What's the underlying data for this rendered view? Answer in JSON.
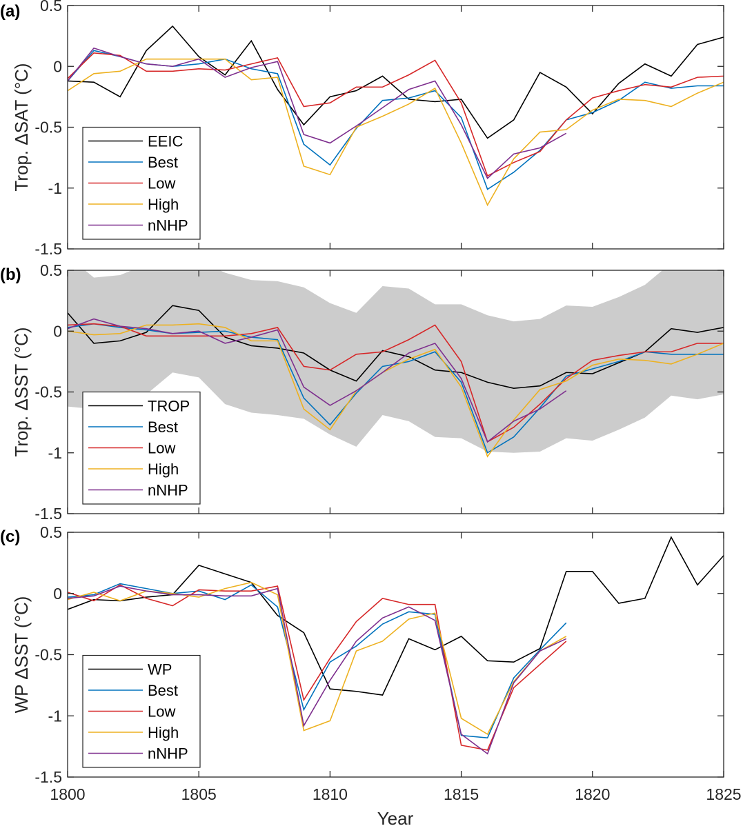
{
  "chart_data": [
    {
      "type": "line",
      "panel_label": "(a)",
      "ylabel": "Trop. ΔSAT (°C)",
      "xlabel": "",
      "xlim": [
        1800,
        1825
      ],
      "ylim": [
        -1.5,
        0.5
      ],
      "xticks": [
        1800,
        1805,
        1810,
        1815,
        1820,
        1825
      ],
      "yticks": [
        -1.5,
        -1,
        -0.5,
        0,
        0.5
      ],
      "ytick_labels": [
        "-1.5",
        "-1",
        "-0.5",
        "0",
        "0.5"
      ],
      "show_xtick_labels": false,
      "grid": false,
      "legend_position": "bottom-left",
      "x_start": 1800,
      "series": [
        {
          "name": "EEIC",
          "color": "#000000",
          "values": [
            -0.12,
            -0.13,
            -0.25,
            0.13,
            0.33,
            0.08,
            -0.07,
            0.21,
            -0.19,
            -0.48,
            -0.25,
            -0.2,
            -0.08,
            -0.27,
            -0.29,
            -0.27,
            -0.59,
            -0.44,
            -0.05,
            -0.17,
            -0.39,
            -0.14,
            0.02,
            -0.08,
            0.18,
            0.24
          ]
        },
        {
          "name": "Best",
          "color": "#0072BD",
          "values": [
            -0.12,
            0.13,
            0.08,
            0.02,
            0.0,
            0.02,
            0.06,
            -0.02,
            -0.06,
            -0.64,
            -0.81,
            -0.51,
            -0.28,
            -0.26,
            -0.2,
            -0.42,
            -1.01,
            -0.87,
            -0.69,
            -0.44,
            -0.38,
            -0.28,
            -0.13,
            -0.18,
            -0.16,
            -0.16
          ]
        },
        {
          "name": "Low",
          "color": "#D95319",
          "stroke": "#D62728",
          "values": [
            -0.1,
            0.11,
            0.09,
            -0.04,
            -0.04,
            -0.02,
            -0.03,
            0.02,
            0.07,
            -0.33,
            -0.3,
            -0.17,
            -0.17,
            -0.07,
            0.05,
            -0.3,
            -0.9,
            -0.79,
            -0.7,
            -0.44,
            -0.26,
            -0.2,
            -0.15,
            -0.17,
            -0.09,
            -0.08
          ]
        },
        {
          "name": "High",
          "color": "#EDB120",
          "values": [
            -0.2,
            -0.06,
            -0.04,
            0.06,
            0.06,
            0.06,
            0.06,
            -0.11,
            -0.09,
            -0.82,
            -0.89,
            -0.5,
            -0.41,
            -0.31,
            -0.18,
            -0.63,
            -1.14,
            -0.76,
            -0.54,
            -0.52,
            -0.36,
            -0.27,
            -0.28,
            -0.33,
            -0.22,
            -0.13
          ]
        },
        {
          "name": "nNHP",
          "color": "#7E2F8E",
          "values": [
            -0.12,
            0.15,
            0.08,
            0.02,
            0.0,
            0.06,
            -0.09,
            -0.01,
            0.04,
            -0.56,
            -0.63,
            -0.49,
            -0.34,
            -0.19,
            -0.12,
            -0.48,
            -0.92,
            -0.72,
            -0.67,
            -0.55
          ]
        }
      ]
    },
    {
      "type": "line",
      "panel_label": "(b)",
      "ylabel": "Trop. ΔSST (°C)",
      "xlabel": "",
      "xlim": [
        1800,
        1825
      ],
      "ylim": [
        -1.5,
        0.5
      ],
      "xticks": [
        1800,
        1805,
        1810,
        1815,
        1820,
        1825
      ],
      "yticks": [
        -1.5,
        -1,
        -0.5,
        0,
        0.5
      ],
      "ytick_labels": [
        "-1.5",
        "-1",
        "-0.5",
        "0",
        "0.5"
      ],
      "show_xtick_labels": false,
      "grid": false,
      "legend_position": "bottom-left",
      "x_start": 1800,
      "band": {
        "color": "#CCCCCC",
        "upper": [
          0.62,
          0.44,
          0.46,
          0.55,
          0.6,
          0.58,
          0.48,
          0.42,
          0.41,
          0.36,
          0.23,
          0.15,
          0.37,
          0.35,
          0.22,
          0.22,
          0.13,
          0.08,
          0.1,
          0.21,
          0.2,
          0.28,
          0.38,
          0.56,
          0.6,
          0.62
        ],
        "lower": [
          -0.62,
          -0.64,
          -0.6,
          -0.52,
          -0.34,
          -0.38,
          -0.6,
          -0.67,
          -0.69,
          -0.72,
          -0.85,
          -0.95,
          -0.69,
          -0.74,
          -0.87,
          -0.88,
          -0.99,
          -1.0,
          -0.99,
          -0.88,
          -0.9,
          -0.81,
          -0.71,
          -0.53,
          -0.56,
          -0.52
        ]
      },
      "series": [
        {
          "name": "TROP",
          "color": "#000000",
          "values": [
            0.15,
            -0.1,
            -0.08,
            -0.01,
            0.21,
            0.17,
            -0.05,
            -0.12,
            -0.14,
            -0.18,
            -0.32,
            -0.41,
            -0.16,
            -0.21,
            -0.32,
            -0.34,
            -0.42,
            -0.47,
            -0.45,
            -0.34,
            -0.35,
            -0.26,
            -0.17,
            0.02,
            -0.01,
            0.03
          ]
        },
        {
          "name": "Best",
          "color": "#0072BD",
          "values": [
            0.03,
            0.06,
            0.03,
            0.01,
            -0.02,
            -0.01,
            0.0,
            -0.05,
            -0.07,
            -0.55,
            -0.77,
            -0.51,
            -0.29,
            -0.25,
            -0.17,
            -0.42,
            -1.0,
            -0.87,
            -0.63,
            -0.37,
            -0.31,
            -0.25,
            -0.17,
            -0.19,
            -0.19,
            -0.19
          ]
        },
        {
          "name": "Low",
          "color": "#D62728",
          "values": [
            0.05,
            0.06,
            0.04,
            -0.04,
            -0.04,
            -0.04,
            -0.04,
            -0.02,
            0.03,
            -0.29,
            -0.32,
            -0.19,
            -0.17,
            -0.07,
            0.05,
            -0.25,
            -0.91,
            -0.79,
            -0.6,
            -0.39,
            -0.24,
            -0.2,
            -0.17,
            -0.17,
            -0.1,
            -0.1
          ]
        },
        {
          "name": "High",
          "color": "#EDB120",
          "values": [
            0.0,
            -0.03,
            -0.02,
            0.05,
            0.05,
            0.06,
            0.03,
            -0.08,
            -0.08,
            -0.64,
            -0.81,
            -0.49,
            -0.34,
            -0.23,
            -0.15,
            -0.46,
            -1.03,
            -0.73,
            -0.48,
            -0.41,
            -0.28,
            -0.23,
            -0.24,
            -0.27,
            -0.19,
            -0.1
          ]
        },
        {
          "name": "nNHP",
          "color": "#7E2F8E",
          "values": [
            0.02,
            0.1,
            0.04,
            0.02,
            -0.02,
            0.0,
            -0.1,
            -0.05,
            0.01,
            -0.46,
            -0.61,
            -0.49,
            -0.34,
            -0.18,
            -0.1,
            -0.39,
            -0.91,
            -0.74,
            -0.64,
            -0.49
          ]
        }
      ]
    },
    {
      "type": "line",
      "panel_label": "(c)",
      "ylabel": "WP ΔSST (°C)",
      "xlabel": "Year",
      "xlim": [
        1800,
        1825
      ],
      "ylim": [
        -1.5,
        0.5
      ],
      "xticks": [
        1800,
        1805,
        1810,
        1815,
        1820,
        1825
      ],
      "xtick_labels": [
        "1800",
        "1805",
        "1810",
        "1815",
        "1820",
        "1825"
      ],
      "yticks": [
        -1.5,
        -1,
        -0.5,
        0,
        0.5
      ],
      "ytick_labels": [
        "-1.5",
        "-1",
        "-0.5",
        "0",
        "0.5"
      ],
      "show_xtick_labels": true,
      "grid": false,
      "legend_position": "bottom-left",
      "x_start": 1800,
      "series": [
        {
          "name": "WP",
          "color": "#000000",
          "values": [
            -0.13,
            -0.05,
            -0.06,
            -0.03,
            -0.01,
            0.23,
            0.16,
            0.09,
            -0.18,
            -0.32,
            -0.78,
            -0.8,
            -0.83,
            -0.37,
            -0.46,
            -0.35,
            -0.55,
            -0.56,
            -0.45,
            0.18,
            0.18,
            -0.08,
            -0.04,
            0.46,
            0.07,
            0.31
          ]
        },
        {
          "name": "Best",
          "color": "#0072BD",
          "values": [
            -0.03,
            -0.01,
            0.08,
            0.04,
            0.0,
            0.02,
            -0.05,
            0.07,
            -0.11,
            -0.95,
            -0.56,
            -0.43,
            -0.25,
            -0.15,
            -0.17,
            -1.16,
            -1.18,
            -0.69,
            -0.46,
            -0.24
          ]
        },
        {
          "name": "Low",
          "color": "#D62728",
          "values": [
            0.01,
            -0.06,
            0.07,
            -0.04,
            -0.1,
            0.03,
            0.02,
            0.02,
            0.06,
            -0.87,
            -0.53,
            -0.23,
            -0.04,
            -0.09,
            -0.09,
            -1.24,
            -1.28,
            -0.77,
            -0.58,
            -0.39
          ]
        },
        {
          "name": "High",
          "color": "#EDB120",
          "values": [
            -0.05,
            0.01,
            -0.06,
            0.02,
            0.0,
            -0.03,
            0.04,
            0.09,
            -0.01,
            -1.12,
            -1.04,
            -0.47,
            -0.39,
            -0.21,
            -0.16,
            -1.02,
            -1.15,
            -0.72,
            -0.47,
            -0.35
          ]
        },
        {
          "name": "nNHP",
          "color": "#7E2F8E",
          "values": [
            -0.04,
            -0.02,
            0.06,
            0.02,
            -0.01,
            -0.01,
            -0.02,
            -0.02,
            0.04,
            -1.08,
            -0.71,
            -0.39,
            -0.2,
            -0.11,
            -0.22,
            -1.15,
            -1.31,
            -0.73,
            -0.47,
            -0.37
          ]
        }
      ]
    }
  ]
}
